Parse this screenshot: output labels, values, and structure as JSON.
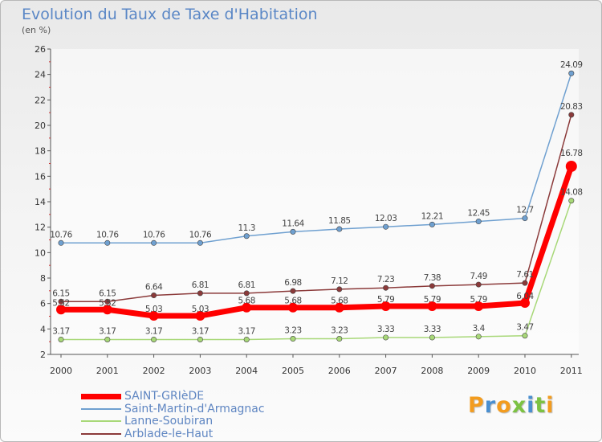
{
  "title": "Evolution du Taux de Taxe d'Habitation",
  "unit": "(en %)",
  "logo_text": "Proxiti",
  "logo_colors": [
    "#f39c1e",
    "#4a8fd0",
    "#f39c1e",
    "#7cc242",
    "#4a8fd0",
    "#7cc242",
    "#f39c1e"
  ],
  "chart_data": {
    "type": "line",
    "x": [
      "2000",
      "2001",
      "2002",
      "2003",
      "2004",
      "2005",
      "2006",
      "2007",
      "2008",
      "2009",
      "2010",
      "2011"
    ],
    "ylim": [
      2,
      26
    ],
    "yticks": [
      2,
      4,
      6,
      8,
      10,
      12,
      14,
      16,
      18,
      20,
      22,
      24,
      26
    ],
    "grid": false,
    "legend_position": "bottom-left",
    "series": [
      {
        "name": "SAINT-GRIèDE",
        "color": "#ff0000",
        "values": [
          5.52,
          5.52,
          5.03,
          5.03,
          5.68,
          5.68,
          5.68,
          5.79,
          5.79,
          5.79,
          6.04,
          16.78
        ],
        "labels": [
          "5.52",
          "5.52",
          "5.03",
          "5.03",
          "5.68",
          "5.68",
          "5.68",
          "5.79",
          "5.79",
          "5.79",
          "6.04",
          "16.78"
        ]
      },
      {
        "name": "Saint-Martin-d'Armagnac",
        "color": "#6fa0d0",
        "values": [
          10.76,
          10.76,
          10.76,
          10.76,
          11.3,
          11.64,
          11.85,
          12.03,
          12.21,
          12.45,
          12.7,
          24.09
        ],
        "labels": [
          "10.76",
          "10.76",
          "10.76",
          "10.76",
          "11.3",
          "11.64",
          "11.85",
          "12.03",
          "12.21",
          "12.45",
          "12.7",
          "24.09"
        ]
      },
      {
        "name": "Lanne-Soubiran",
        "color": "#a8d878",
        "values": [
          3.17,
          3.17,
          3.17,
          3.17,
          3.17,
          3.23,
          3.23,
          3.33,
          3.33,
          3.4,
          3.47,
          14.08
        ],
        "labels": [
          "3.17",
          "3.17",
          "3.17",
          "3.17",
          "3.17",
          "3.23",
          "3.23",
          "3.33",
          "3.33",
          "3.4",
          "3.47",
          "14.08"
        ]
      },
      {
        "name": "Arblade-le-Haut",
        "color": "#8b3a3a",
        "values": [
          6.15,
          6.15,
          6.64,
          6.81,
          6.81,
          6.98,
          7.12,
          7.23,
          7.38,
          7.49,
          7.61,
          20.83
        ],
        "labels": [
          "6.15",
          "6.15",
          "6.64",
          "6.81",
          "6.81",
          "6.98",
          "7.12",
          "7.23",
          "7.38",
          "7.49",
          "7.61",
          "20.83"
        ]
      }
    ]
  }
}
